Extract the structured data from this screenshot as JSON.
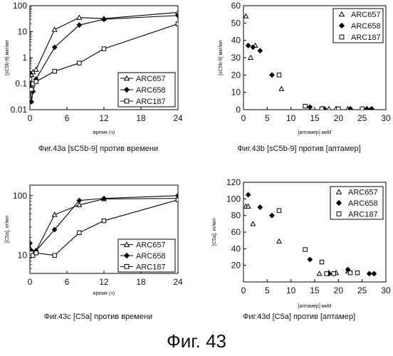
{
  "figure_label": "Фиг. 43",
  "chart_data": [
    {
      "id": "a",
      "type": "line",
      "caption": "Фиг.43а  [sC5b-9] против времени",
      "xlabel": "время (ч)",
      "ylabel": "[sC5b-9] мкг/мл",
      "yscale": "log",
      "xlim": [
        0,
        24
      ],
      "ylim": [
        0.01,
        100
      ],
      "xticks": [
        0,
        6,
        12,
        18,
        24
      ],
      "yticks": [
        0.01,
        0.1,
        1,
        10,
        100
      ],
      "yticklabels": [
        "0.01",
        "0.1",
        "1",
        "10",
        "100"
      ],
      "grid": false,
      "legend_position": "bottom-right",
      "series": [
        {
          "name": "ARC657",
          "marker": "triangle",
          "x": [
            0,
            0.25,
            0.5,
            1,
            4,
            8,
            12,
            24
          ],
          "y": [
            0.12,
            0.22,
            0.28,
            0.35,
            12,
            35,
            32,
            55
          ]
        },
        {
          "name": "ARC658",
          "marker": "diamond",
          "x": [
            0,
            0.25,
            0.5,
            1,
            4,
            8,
            12,
            24
          ],
          "y": [
            0.25,
            0.02,
            0.05,
            0.15,
            2.5,
            18,
            30,
            42
          ]
        },
        {
          "name": "ARC187",
          "marker": "square",
          "x": [
            0,
            0.25,
            0.5,
            1,
            4,
            8,
            12,
            24
          ],
          "y": [
            0.15,
            0.06,
            0.1,
            0.12,
            0.3,
            0.62,
            2.2,
            20
          ]
        }
      ]
    },
    {
      "id": "b",
      "type": "scatter",
      "caption": "Фиг.43b [sC5b-9] против [аптамер]",
      "xlabel": "[аптамер] мкМ",
      "ylabel": "[sC5b-9] мкг/мл",
      "xlim": [
        0,
        30
      ],
      "ylim": [
        0,
        60
      ],
      "xticks": [
        0,
        5,
        10,
        15,
        20,
        25,
        30
      ],
      "yticks": [
        0,
        10,
        20,
        30,
        40,
        50,
        60
      ],
      "grid": false,
      "legend_position": "top-right",
      "series": [
        {
          "name": "ARC657",
          "marker": "triangle",
          "x": [
            0.5,
            1.5,
            2.5,
            8,
            16.5,
            18,
            19.5,
            22
          ],
          "y": [
            54,
            30,
            37,
            12,
            0.5,
            0.5,
            0.5,
            0.5
          ]
        },
        {
          "name": "ARC658",
          "marker": "diamond",
          "x": [
            1,
            2,
            3.5,
            6,
            14,
            17,
            22.5,
            26,
            27
          ],
          "y": [
            37,
            36,
            34,
            20,
            1.5,
            0.5,
            0.5,
            0.5,
            0.5
          ]
        },
        {
          "name": "ARC187",
          "marker": "square",
          "x": [
            7.5,
            13,
            16.5,
            20,
            25
          ],
          "y": [
            20,
            2,
            0.5,
            0.5,
            0.5
          ]
        }
      ]
    },
    {
      "id": "c",
      "type": "line",
      "caption": "Фиг.43с [C5a] против времени",
      "xlabel": "время (ч)",
      "ylabel": "[C5a], нг/мл",
      "yscale": "log",
      "xlim": [
        0,
        24
      ],
      "ylim": [
        5,
        150
      ],
      "xticks": [
        0,
        6,
        12,
        18,
        24
      ],
      "yticks": [
        10,
        100
      ],
      "yticklabels": [
        "10",
        "100"
      ],
      "grid": false,
      "legend_position": "bottom-right",
      "series": [
        {
          "name": "ARC657",
          "marker": "triangle",
          "x": [
            0,
            0.25,
            0.5,
            1,
            4,
            8,
            12,
            24
          ],
          "y": [
            12,
            11,
            11,
            12,
            48,
            70,
            88,
            90
          ]
        },
        {
          "name": "ARC658",
          "marker": "diamond",
          "x": [
            0,
            0.25,
            0.5,
            1,
            4,
            8,
            12,
            24
          ],
          "y": [
            16,
            12,
            11,
            12,
            27,
            83,
            90,
            100
          ]
        },
        {
          "name": "ARC187",
          "marker": "square",
          "x": [
            0,
            0.25,
            0.5,
            1,
            4,
            8,
            12,
            24
          ],
          "y": [
            10,
            11,
            10,
            11,
            10,
            24,
            38,
            85
          ]
        }
      ]
    },
    {
      "id": "d",
      "type": "scatter",
      "caption": "Фиг.43d [C5a] против [аптамер]",
      "xlabel": "[аптамер] мкМ",
      "ylabel": "[C5a], нг/мл",
      "xlim": [
        0,
        30
      ],
      "ylim": [
        0,
        120
      ],
      "xticks": [
        0,
        5,
        10,
        15,
        20,
        25,
        30
      ],
      "yticks": [
        0,
        20,
        40,
        60,
        80,
        100,
        120
      ],
      "yticklabels": [
        "",
        "20",
        "40",
        "60",
        "80",
        "100",
        "120"
      ],
      "grid": false,
      "legend_position": "top-right",
      "series": [
        {
          "name": "ARC657",
          "marker": "triangle",
          "x": [
            0.5,
            1,
            2,
            7.5,
            16,
            18,
            19.5,
            22
          ],
          "y": [
            91,
            91,
            70,
            49,
            10,
            11,
            11,
            13
          ]
        },
        {
          "name": "ARC658",
          "marker": "diamond",
          "x": [
            1,
            3.5,
            6,
            14,
            18,
            22,
            26.5,
            27.5
          ],
          "y": [
            105,
            90,
            80,
            27,
            10,
            15,
            10,
            10
          ]
        },
        {
          "name": "ARC187",
          "marker": "square",
          "x": [
            7.5,
            13,
            16.5,
            17.5,
            19,
            22.5,
            24
          ],
          "y": [
            86,
            39,
            24,
            10,
            10,
            11,
            11
          ]
        }
      ]
    }
  ]
}
